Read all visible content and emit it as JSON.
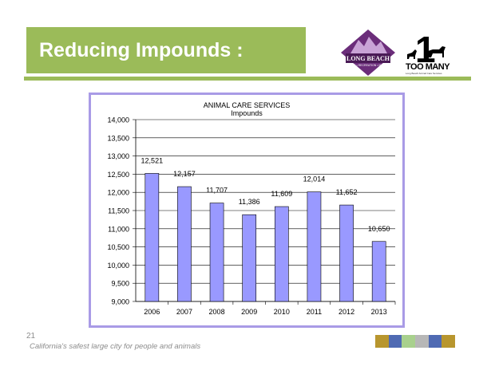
{
  "slide": {
    "title": "Reducing Impounds :",
    "page_number": "21",
    "tagline": "California's safest large city for people and animals"
  },
  "logos": {
    "long_beach": {
      "text": "LONG BEACH",
      "subtext": "PARKS • RECREATION • MARINE"
    },
    "too_many": {
      "number": "1",
      "text": "TOO MANY",
      "subtext": "Long Beach Animal Care Services"
    }
  },
  "colors": {
    "title_bar": "#9bbb59",
    "chart_border": "#a99be6",
    "bar_fill": "#9999ff",
    "strip": [
      "#b8962e",
      "#4f6ab3",
      "#a8d08d",
      "#b7b7b7",
      "#4f6ab3",
      "#b8962e"
    ]
  },
  "chart_data": {
    "type": "bar",
    "title": "ANIMAL CARE SERVICES",
    "subtitle": "Impounds",
    "categories": [
      "2006",
      "2007",
      "2008",
      "2009",
      "2010",
      "2011",
      "2012",
      "2013"
    ],
    "values": [
      12521,
      12157,
      11707,
      11386,
      11609,
      12014,
      11652,
      10650
    ],
    "value_labels": [
      "12,521",
      "12,157",
      "11,707",
      "11,386",
      "11,609",
      "12,014",
      "11,652",
      "10,650"
    ],
    "ylim": [
      9000,
      14000
    ],
    "yticks": [
      9000,
      9500,
      10000,
      10500,
      11000,
      11500,
      12000,
      12500,
      13000,
      13500,
      14000
    ],
    "ytick_labels": [
      "9,000",
      "9,500",
      "10,000",
      "10,500",
      "11,000",
      "11,500",
      "12,000",
      "12,500",
      "13,000",
      "13,500",
      "14,000"
    ],
    "xlabel": "",
    "ylabel": "",
    "grid": true
  }
}
